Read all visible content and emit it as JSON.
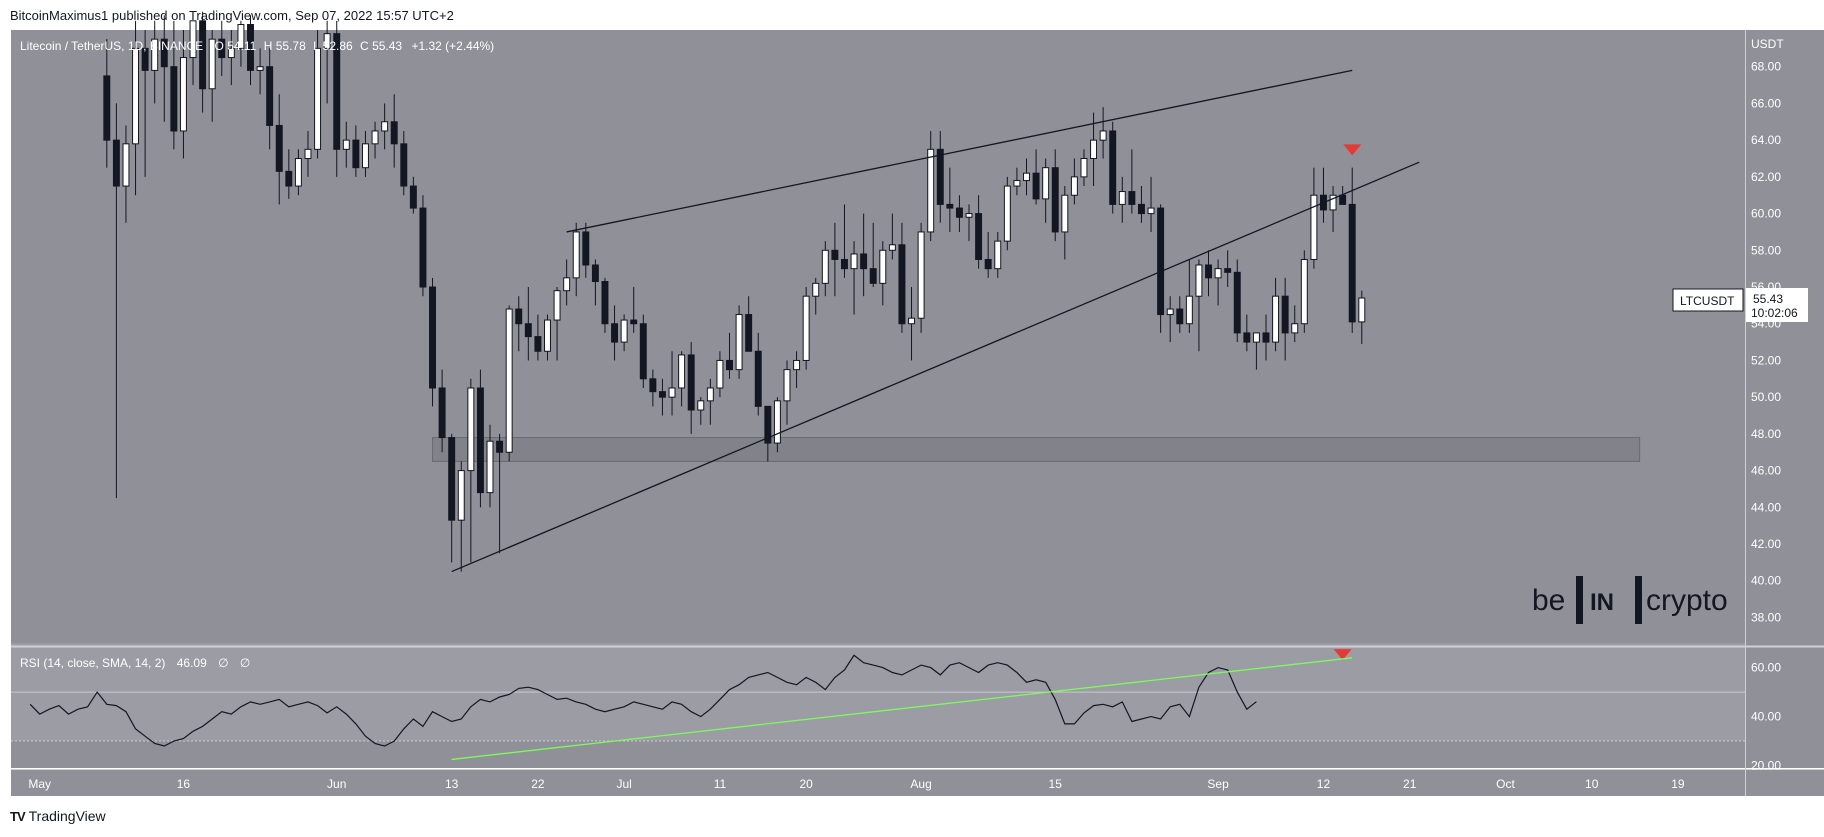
{
  "header": {
    "publisher_line": "BitcoinMaximus1 published on TradingView.com, Sep 07, 2022 15:57 UTC+2"
  },
  "footer": {
    "brand": "TradingView"
  },
  "symbol": {
    "title": "Litecoin / TetherUS, 1D, BINANCE",
    "open": "54.11",
    "high": "55.78",
    "low": "52.86",
    "close": "55.43",
    "change": "+1.32 (+2.44%)",
    "currency": "USDT"
  },
  "price_tag": {
    "ticker": "LTCUSDT",
    "price": "55.43",
    "countdown": "10:02:06"
  },
  "rsi": {
    "label": "RSI (14, close, SMA, 14, 2)",
    "value": "46.09",
    "extra1": "∅",
    "extra2": "∅"
  },
  "watermark": {
    "left": "be",
    "middle": "IN",
    "right": "crypto"
  },
  "colors": {
    "pane_bg": "#8f9098",
    "rsi_band": "#9b9ca4",
    "bull_candle": "#ffffff",
    "bear_candle": "#131722",
    "wick": "#131722",
    "rsi_line": "#131722",
    "rsi_trendline": "#7cfc5c",
    "signal_marker": "#e53935"
  },
  "chart_data": {
    "type": "candlestick",
    "title": "Litecoin / TetherUS, 1D, BINANCE",
    "y_unit": "USDT",
    "y_ticks": [
      38,
      40,
      42,
      44,
      46,
      48,
      50,
      52,
      54,
      56,
      58,
      60,
      62,
      64,
      66,
      68
    ],
    "ylim": [
      36.5,
      70
    ],
    "x_ticks": [
      "May",
      "16",
      "Jun",
      "13",
      "22",
      "Jul",
      "11",
      "20",
      "Aug",
      "15",
      "Sep",
      "12",
      "21",
      "Oct",
      "10",
      "19"
    ],
    "x_tick_dates": [
      "2022-05-01",
      "2022-05-16",
      "2022-06-01",
      "2022-06-13",
      "2022-06-22",
      "2022-07-01",
      "2022-07-11",
      "2022-07-20",
      "2022-08-01",
      "2022-08-15",
      "2022-09-01",
      "2022-09-12",
      "2022-09-21",
      "2022-10-01",
      "2022-10-10",
      "2022-10-19"
    ],
    "xlim": [
      "2022-04-28",
      "2022-10-26"
    ],
    "candles": [
      [
        "2022-05-08",
        67.5,
        69.5,
        62.5,
        64.0
      ],
      [
        "2022-05-09",
        64.0,
        66.0,
        44.5,
        61.5
      ],
      [
        "2022-05-10",
        61.5,
        64.8,
        59.5,
        63.8
      ],
      [
        "2022-05-11",
        63.8,
        70.5,
        61.0,
        69.0
      ],
      [
        "2022-05-12",
        69.0,
        70.0,
        62.0,
        67.8
      ],
      [
        "2022-05-13",
        67.8,
        70.5,
        66.0,
        69.5
      ],
      [
        "2022-05-14",
        69.5,
        70.8,
        65.0,
        68.0
      ],
      [
        "2022-05-15",
        68.0,
        70.5,
        63.5,
        64.5
      ],
      [
        "2022-05-16",
        64.5,
        70.0,
        63.0,
        68.5
      ],
      [
        "2022-05-17",
        68.5,
        70.5,
        67.0,
        70.5
      ],
      [
        "2022-05-18",
        70.5,
        71.0,
        65.5,
        66.8
      ],
      [
        "2022-05-19",
        66.8,
        70.0,
        65.0,
        69.5
      ],
      [
        "2022-05-20",
        69.5,
        70.5,
        67.5,
        68.5
      ],
      [
        "2022-05-21",
        68.5,
        70.0,
        67.0,
        69.0
      ],
      [
        "2022-05-22",
        69.0,
        70.5,
        68.0,
        70.3
      ],
      [
        "2022-05-23",
        70.3,
        70.8,
        67.0,
        67.8
      ],
      [
        "2022-05-24",
        67.8,
        69.0,
        66.5,
        68.0
      ],
      [
        "2022-05-25",
        68.0,
        69.0,
        63.5,
        64.8
      ],
      [
        "2022-05-26",
        64.8,
        66.5,
        60.5,
        62.3
      ],
      [
        "2022-05-27",
        62.3,
        63.5,
        60.8,
        61.5
      ],
      [
        "2022-05-28",
        61.5,
        63.5,
        61.0,
        63.0
      ],
      [
        "2022-05-29",
        63.0,
        64.5,
        62.0,
        63.5
      ],
      [
        "2022-05-30",
        63.5,
        70.0,
        63.0,
        69.0
      ],
      [
        "2022-05-31",
        69.0,
        70.5,
        66.0,
        69.8
      ],
      [
        "2022-06-01",
        69.8,
        70.5,
        62.0,
        63.5
      ],
      [
        "2022-06-02",
        63.5,
        65.0,
        62.5,
        64.0
      ],
      [
        "2022-06-03",
        64.0,
        64.8,
        62.0,
        62.5
      ],
      [
        "2022-06-04",
        62.5,
        64.5,
        62.0,
        63.8
      ],
      [
        "2022-06-05",
        63.8,
        65.0,
        63.0,
        64.5
      ],
      [
        "2022-06-06",
        64.5,
        66.0,
        63.5,
        65.0
      ],
      [
        "2022-06-07",
        65.0,
        66.5,
        62.5,
        63.8
      ],
      [
        "2022-06-08",
        63.8,
        64.5,
        61.0,
        61.5
      ],
      [
        "2022-06-09",
        61.5,
        62.0,
        60.0,
        60.3
      ],
      [
        "2022-06-10",
        60.3,
        61.0,
        55.5,
        56.0
      ],
      [
        "2022-06-11",
        56.0,
        56.5,
        49.5,
        50.5
      ],
      [
        "2022-06-12",
        50.5,
        51.5,
        47.0,
        47.8
      ],
      [
        "2022-06-13",
        47.8,
        48.0,
        41.0,
        43.3
      ],
      [
        "2022-06-14",
        43.3,
        46.5,
        40.5,
        46.0
      ],
      [
        "2022-06-15",
        46.0,
        51.0,
        41.0,
        50.5
      ],
      [
        "2022-06-16",
        50.5,
        51.5,
        44.0,
        44.8
      ],
      [
        "2022-06-17",
        44.8,
        48.5,
        44.0,
        47.6
      ],
      [
        "2022-06-18",
        47.6,
        48.0,
        41.5,
        47.0
      ],
      [
        "2022-06-19",
        47.0,
        55.0,
        46.5,
        54.8
      ],
      [
        "2022-06-20",
        54.8,
        55.5,
        52.5,
        54.0
      ],
      [
        "2022-06-21",
        54.0,
        56.0,
        52.0,
        53.3
      ],
      [
        "2022-06-22",
        53.3,
        54.5,
        52.0,
        52.5
      ],
      [
        "2022-06-23",
        52.5,
        54.5,
        52.0,
        54.2
      ],
      [
        "2022-06-24",
        54.2,
        56.0,
        52.0,
        55.8
      ],
      [
        "2022-06-25",
        55.8,
        57.5,
        55.0,
        56.5
      ],
      [
        "2022-06-26",
        56.5,
        59.5,
        55.5,
        59.0
      ],
      [
        "2022-06-27",
        59.0,
        59.5,
        56.5,
        57.2
      ],
      [
        "2022-06-28",
        57.2,
        57.5,
        55.0,
        56.3
      ],
      [
        "2022-06-29",
        56.3,
        56.5,
        53.5,
        54.0
      ],
      [
        "2022-06-30",
        54.0,
        55.0,
        52.0,
        53.0
      ],
      [
        "2022-07-01",
        53.0,
        54.5,
        52.5,
        54.2
      ],
      [
        "2022-07-02",
        54.2,
        56.0,
        53.5,
        54.0
      ],
      [
        "2022-07-03",
        54.0,
        54.5,
        50.5,
        51.0
      ],
      [
        "2022-07-04",
        51.0,
        51.5,
        49.5,
        50.3
      ],
      [
        "2022-07-05",
        50.3,
        51.0,
        49.0,
        50.0
      ],
      [
        "2022-07-06",
        50.0,
        52.5,
        49.0,
        50.5
      ],
      [
        "2022-07-07",
        50.5,
        52.5,
        49.5,
        52.3
      ],
      [
        "2022-07-08",
        52.3,
        53.0,
        48.0,
        49.3
      ],
      [
        "2022-07-09",
        49.3,
        50.0,
        48.5,
        49.8
      ],
      [
        "2022-07-10",
        49.8,
        51.0,
        48.5,
        50.5
      ],
      [
        "2022-07-11",
        50.5,
        52.5,
        50.0,
        52.0
      ],
      [
        "2022-07-12",
        52.0,
        53.5,
        51.0,
        51.5
      ],
      [
        "2022-07-13",
        51.5,
        55.0,
        51.0,
        54.5
      ],
      [
        "2022-07-14",
        54.5,
        55.5,
        52.5,
        52.5
      ],
      [
        "2022-07-15",
        52.5,
        53.5,
        49.0,
        49.5
      ],
      [
        "2022-07-16",
        49.5,
        49.5,
        46.5,
        47.5
      ],
      [
        "2022-07-17",
        47.5,
        50.0,
        47.0,
        49.8
      ],
      [
        "2022-07-18",
        49.8,
        52.0,
        48.5,
        51.5
      ],
      [
        "2022-07-19",
        51.5,
        52.5,
        50.5,
        52.0
      ],
      [
        "2022-07-20",
        52.0,
        56.0,
        51.5,
        55.5
      ],
      [
        "2022-07-21",
        55.5,
        56.5,
        54.5,
        56.2
      ],
      [
        "2022-07-22",
        56.2,
        58.5,
        55.5,
        58.0
      ],
      [
        "2022-07-23",
        58.0,
        59.5,
        55.5,
        57.5
      ],
      [
        "2022-07-24",
        57.5,
        60.5,
        56.5,
        57.0
      ],
      [
        "2022-07-25",
        57.0,
        58.5,
        54.5,
        57.8
      ],
      [
        "2022-07-26",
        57.8,
        60.0,
        55.5,
        57.0
      ],
      [
        "2022-07-27",
        57.0,
        59.5,
        56.0,
        56.2
      ],
      [
        "2022-07-28",
        56.2,
        58.5,
        55.0,
        58.0
      ],
      [
        "2022-07-29",
        58.0,
        60.0,
        57.5,
        58.3
      ],
      [
        "2022-07-30",
        58.3,
        59.5,
        53.5,
        54.0
      ],
      [
        "2022-07-31",
        54.0,
        56.0,
        52.0,
        54.3
      ],
      [
        "2022-08-01",
        54.3,
        59.5,
        53.5,
        59.0
      ],
      [
        "2022-08-02",
        59.0,
        64.5,
        58.5,
        63.5
      ],
      [
        "2022-08-03",
        63.5,
        64.5,
        59.5,
        60.5
      ],
      [
        "2022-08-04",
        60.5,
        62.5,
        59.0,
        60.3
      ],
      [
        "2022-08-05",
        60.3,
        61.0,
        59.0,
        59.8
      ],
      [
        "2022-08-06",
        59.8,
        60.5,
        58.5,
        60.0
      ],
      [
        "2022-08-07",
        60.0,
        61.0,
        57.0,
        57.5
      ],
      [
        "2022-08-08",
        57.5,
        59.0,
        56.5,
        57.0
      ],
      [
        "2022-08-09",
        57.0,
        59.0,
        56.5,
        58.5
      ],
      [
        "2022-08-10",
        58.5,
        62.0,
        58.0,
        61.5
      ],
      [
        "2022-08-11",
        61.5,
        62.5,
        61.0,
        61.8
      ],
      [
        "2022-08-12",
        61.8,
        63.0,
        61.0,
        62.2
      ],
      [
        "2022-08-13",
        62.2,
        63.5,
        60.5,
        60.8
      ],
      [
        "2022-08-14",
        60.8,
        63.0,
        59.5,
        62.5
      ],
      [
        "2022-08-15",
        62.5,
        63.5,
        58.5,
        59.0
      ],
      [
        "2022-08-16",
        59.0,
        61.5,
        57.5,
        61.0
      ],
      [
        "2022-08-17",
        61.0,
        63.0,
        60.5,
        62.0
      ],
      [
        "2022-08-18",
        62.0,
        63.5,
        61.5,
        63.0
      ],
      [
        "2022-08-19",
        63.0,
        65.5,
        61.5,
        64.0
      ],
      [
        "2022-08-20",
        64.0,
        65.8,
        63.0,
        64.5
      ],
      [
        "2022-08-21",
        64.5,
        65.0,
        60.0,
        60.5
      ],
      [
        "2022-08-22",
        60.5,
        62.0,
        59.5,
        61.2
      ],
      [
        "2022-08-23",
        61.2,
        63.5,
        60.0,
        60.5
      ],
      [
        "2022-08-24",
        60.5,
        61.5,
        59.5,
        60.0
      ],
      [
        "2022-08-25",
        60.0,
        62.0,
        59.0,
        60.3
      ],
      [
        "2022-08-26",
        60.3,
        60.5,
        53.5,
        54.5
      ],
      [
        "2022-08-27",
        54.5,
        55.5,
        53.0,
        54.8
      ],
      [
        "2022-08-28",
        54.8,
        55.5,
        53.5,
        54.0
      ],
      [
        "2022-08-29",
        54.0,
        57.5,
        53.5,
        55.5
      ],
      [
        "2022-08-30",
        55.5,
        57.5,
        52.5,
        57.2
      ],
      [
        "2022-08-31",
        57.2,
        58.0,
        55.5,
        56.5
      ],
      [
        "2022-09-01",
        56.5,
        57.5,
        55.0,
        57.0
      ],
      [
        "2022-09-02",
        57.0,
        58.0,
        56.0,
        56.8
      ],
      [
        "2022-09-03",
        56.8,
        57.5,
        53.0,
        53.5
      ],
      [
        "2022-09-04",
        53.5,
        54.5,
        52.5,
        53.0
      ],
      [
        "2022-09-05",
        53.0,
        53.5,
        51.5,
        53.5
      ],
      [
        "2022-09-06",
        53.5,
        54.5,
        52.0,
        53.0
      ],
      [
        "2022-09-07",
        53.0,
        56.5,
        52.5,
        55.5
      ],
      [
        "2022-09-08",
        55.5,
        56.5,
        52.0,
        53.5
      ],
      [
        "2022-09-09",
        53.5,
        55.0,
        53.0,
        54.0
      ],
      [
        "2022-09-10",
        54.0,
        58.0,
        53.5,
        57.5
      ],
      [
        "2022-09-11",
        57.5,
        62.5,
        57.0,
        61.0
      ],
      [
        "2022-09-12",
        61.0,
        62.5,
        59.5,
        60.2
      ],
      [
        "2022-09-13",
        60.2,
        61.5,
        59.0,
        61.0
      ],
      [
        "2022-09-14",
        61.0,
        61.5,
        60.5,
        60.5
      ],
      [
        "2022-09-15",
        60.5,
        62.5,
        53.5,
        54.1
      ],
      [
        "2022-09-16",
        54.1,
        55.8,
        52.9,
        55.4
      ]
    ],
    "support_zone": [
      46.5,
      47.8
    ],
    "rising_wedge": {
      "upper": [
        [
          "2022-06-25",
          59.0
        ],
        [
          "2022-09-15",
          67.8
        ]
      ],
      "lower": [
        [
          "2022-06-13",
          40.5
        ],
        [
          "2022-09-22",
          62.8
        ]
      ]
    },
    "bearish_marker": [
      "2022-09-15",
      63.5
    ],
    "rsi": {
      "y_ticks": [
        20,
        40,
        60
      ],
      "ylim": [
        19,
        68
      ],
      "band": [
        30,
        70
      ],
      "midline": 50,
      "values": [
        45.0,
        41.0,
        43.0,
        44.5,
        41.0,
        43.0,
        44.0,
        50.0,
        45.0,
        44.5,
        42.0,
        35.0,
        32.0,
        29.0,
        28.0,
        30.0,
        31.0,
        34.0,
        36.0,
        39.0,
        42.0,
        41.0,
        44.0,
        46.0,
        45.0,
        46.0,
        47.0,
        44.0,
        45.0,
        46.0,
        44.5,
        41.5,
        44.0,
        41.0,
        37.0,
        32.0,
        29.0,
        28.0,
        30.0,
        35.0,
        39.0,
        36.0,
        42.0,
        40.0,
        38.0,
        39.0,
        44.0,
        47.0,
        46.0,
        48.0,
        49.0,
        51.5,
        52.0,
        51.0,
        49.0,
        47.0,
        47.5,
        46.0,
        45.0,
        43.0,
        42.0,
        43.0,
        44.0,
        46.0,
        45.0,
        44.0,
        43.0,
        46.0,
        45.0,
        42.0,
        40.0,
        43.0,
        47.0,
        51.0,
        53.0,
        56.0,
        57.0,
        58.0,
        56.0,
        54.0,
        53.0,
        56.0,
        54.0,
        51.0,
        56.0,
        59.0,
        65.0,
        62.0,
        61.0,
        60.0,
        58.0,
        57.0,
        59.0,
        61.0,
        60.0,
        57.0,
        61.0,
        62.0,
        60.0,
        58.0,
        61.0,
        62.0,
        61.0,
        58.0,
        54.0,
        55.0,
        54.0,
        47.0,
        37.0,
        37.0,
        41.5,
        44.5,
        45.0,
        44.0,
        46.0,
        38.0,
        39.0,
        40.0,
        39.0,
        44.0,
        45.0,
        40.0,
        52.0,
        58.0,
        60.0,
        59.0,
        50.0,
        43.0,
        46.09
      ],
      "trendline": [
        [
          "2022-06-13",
          22.5
        ],
        [
          "2022-09-15",
          64.0
        ]
      ],
      "bearish_marker": [
        "2022-09-14",
        65.5
      ]
    }
  }
}
